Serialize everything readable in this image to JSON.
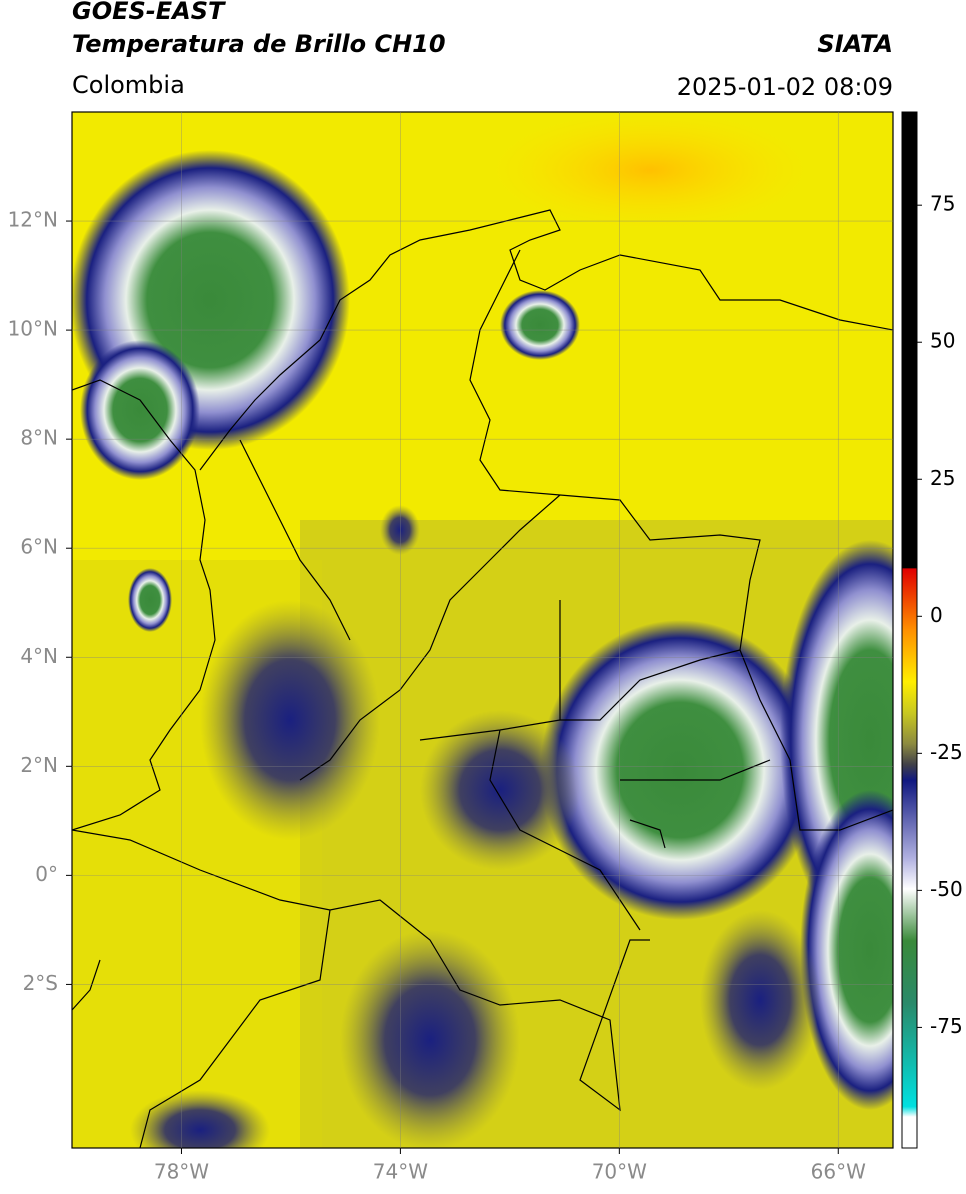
{
  "header": {
    "source": "GOES-EAST",
    "title": "Temperatura de Brillo CH10",
    "agency": "SIATA",
    "region": "Colombia",
    "datetime": "2025-01-02 08:09"
  },
  "map": {
    "xlim": [
      -80,
      -65
    ],
    "ylim": [
      -5,
      14
    ],
    "xticks": [
      {
        "value": -78,
        "label": "78°W"
      },
      {
        "value": -74,
        "label": "74°W"
      },
      {
        "value": -70,
        "label": "70°W"
      },
      {
        "value": -66,
        "label": "66°W"
      }
    ],
    "yticks": [
      {
        "value": 12,
        "label": "12°N"
      },
      {
        "value": 10,
        "label": "10°N"
      },
      {
        "value": 8,
        "label": "8°N"
      },
      {
        "value": 6,
        "label": "6°N"
      },
      {
        "value": 4,
        "label": "4°N"
      },
      {
        "value": 2,
        "label": "2°N"
      },
      {
        "value": 0,
        "label": "0°"
      },
      {
        "value": -2,
        "label": "2°S"
      }
    ]
  },
  "colorbar": {
    "lim": [
      -97,
      92
    ],
    "ticks": [
      75,
      50,
      25,
      0,
      -25,
      -50,
      -75
    ]
  }
}
